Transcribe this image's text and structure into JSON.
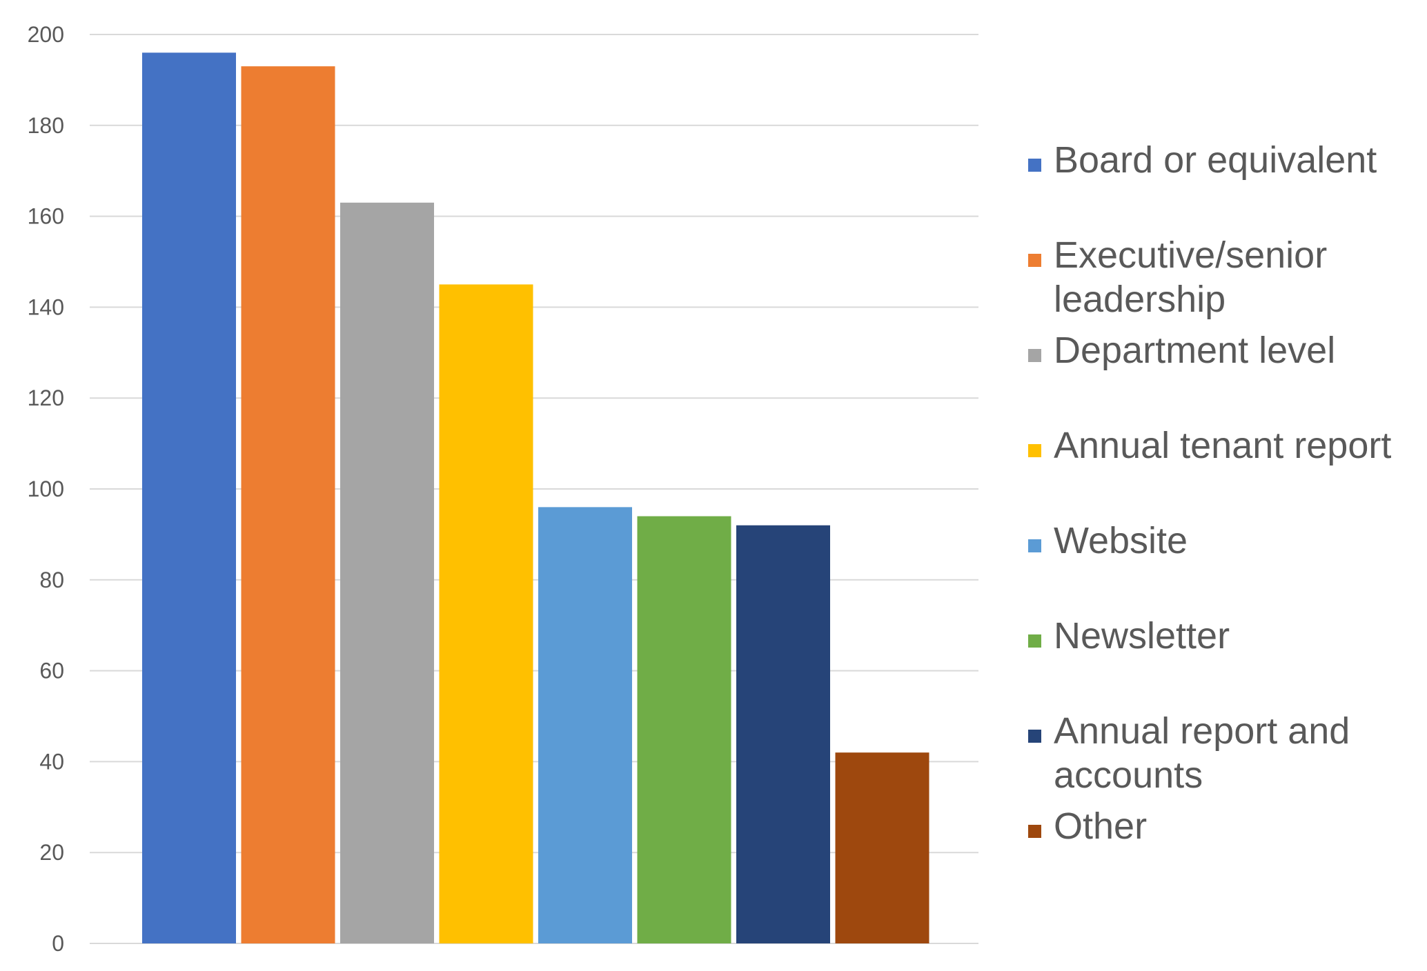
{
  "chart_data": {
    "type": "bar",
    "categories": [
      "Board or equivalent",
      "Executive/senior leadership",
      "Department level",
      "Annual tenant report",
      "Website",
      "Newsletter",
      "Annual report and accounts",
      "Other"
    ],
    "values": [
      196,
      193,
      163,
      145,
      96,
      94,
      92,
      42
    ],
    "colors": [
      "#4472C4",
      "#ED7D31",
      "#A5A5A5",
      "#FFC000",
      "#5B9BD5",
      "#70AD47",
      "#264478",
      "#9E480E"
    ],
    "legend_labels": [
      [
        "Board or equivalent"
      ],
      [
        "Executive/senior",
        "leadership"
      ],
      [
        "Department level"
      ],
      [
        "Annual tenant report"
      ],
      [
        "Website"
      ],
      [
        "Newsletter"
      ],
      [
        "Annual report and",
        "accounts"
      ],
      [
        "Other"
      ]
    ],
    "ylim": [
      0,
      200
    ],
    "yticks": [
      "0",
      "20",
      "40",
      "60",
      "80",
      "100",
      "120",
      "140",
      "160",
      "180",
      "200"
    ],
    "grid": true,
    "legend_position": "right",
    "title": "",
    "xlabel": "",
    "ylabel": ""
  }
}
